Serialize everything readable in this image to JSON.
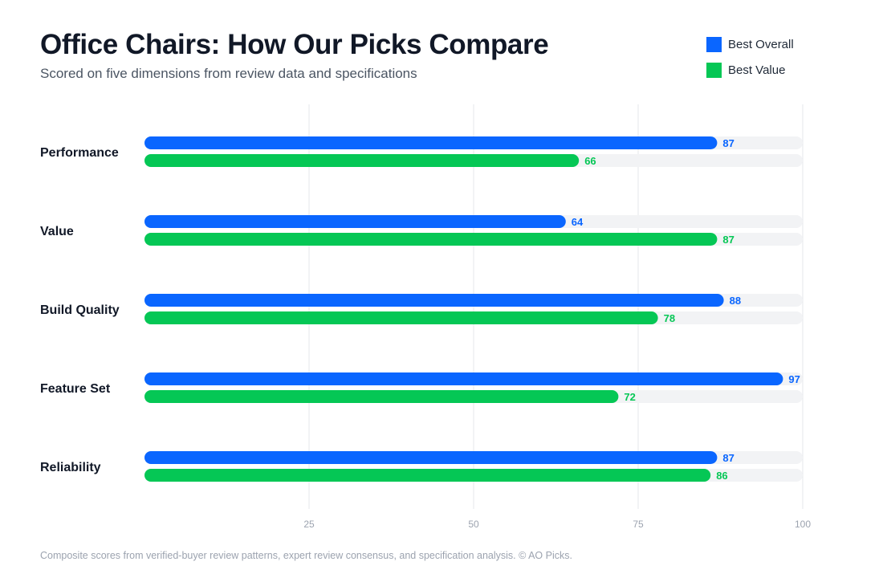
{
  "header": {
    "title": "Office Chairs: How Our Picks Compare",
    "subtitle": "Scored on five dimensions from review data and specifications"
  },
  "legend": [
    {
      "label": "Best Overall",
      "color": "#0a66ff"
    },
    {
      "label": "Best Value",
      "color": "#05c755"
    }
  ],
  "chart_data": {
    "type": "bar",
    "orientation": "horizontal",
    "title": "Office Chairs: How Our Picks Compare",
    "subtitle": "Scored on five dimensions from review data and specifications",
    "categories": [
      "Performance",
      "Value",
      "Build Quality",
      "Feature Set",
      "Reliability"
    ],
    "series": [
      {
        "name": "Best Overall",
        "color": "#0a66ff",
        "values": [
          87,
          64,
          88,
          97,
          87
        ]
      },
      {
        "name": "Best Value",
        "color": "#05c755",
        "values": [
          66,
          87,
          78,
          72,
          86
        ]
      }
    ],
    "xlim": [
      0,
      100
    ],
    "xticks": [
      25,
      50,
      75,
      100
    ],
    "grid": true,
    "legend_position": "top-right",
    "track_color": "#f2f3f5",
    "grid_color": "#e5e7eb"
  },
  "footnote": "Composite scores from verified-buyer review patterns, expert review consensus, and specification analysis. © AO Picks."
}
